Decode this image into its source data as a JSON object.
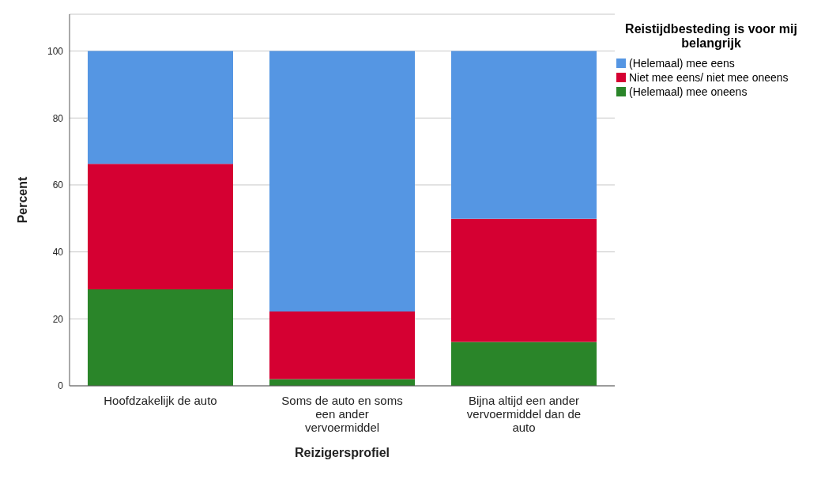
{
  "chart_data": {
    "type": "bar",
    "stacked": true,
    "xlabel": "Reizigersprofiel",
    "ylabel": "Percent",
    "legend_title": "Reistijdbesteding is voor mij belangrijk",
    "categories": [
      "Hoofdzakelijk de auto",
      "Soms de auto en soms een ander vervoermiddel",
      "Bijna altijd een ander vervoermiddel dan de auto"
    ],
    "series": [
      {
        "name": "(Helemaal) mee oneens",
        "color": "#2a8529",
        "values": [
          28.8,
          2.0,
          13.1
        ]
      },
      {
        "name": "Niet mee eens/ niet mee oneens",
        "color": "#d50032",
        "values": [
          37.5,
          20.2,
          36.8
        ]
      },
      {
        "name": "(Helemaal) mee eens",
        "color": "#5596e3",
        "values": [
          33.7,
          77.8,
          50.1
        ]
      }
    ],
    "ylim": [
      0,
      111
    ],
    "yticks": [
      0,
      20,
      40,
      60,
      80,
      100
    ],
    "grid": "y",
    "legend": "top right"
  }
}
